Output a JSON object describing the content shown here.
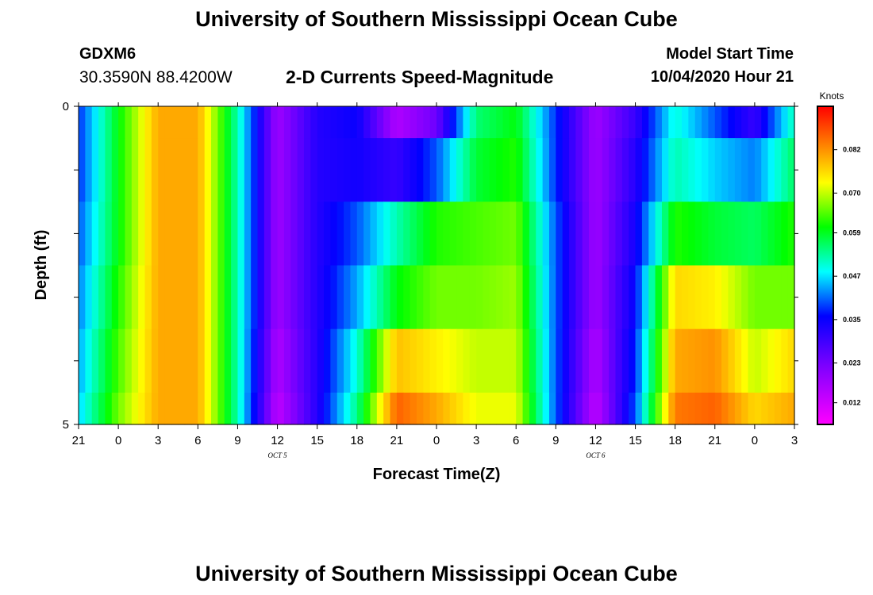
{
  "header": {
    "title": "University of Southern Mississippi Ocean Cube",
    "station_id": "GDXM6",
    "station_coords": "30.3590N 88.4200W",
    "plot_title": "2-D Currents Speed-Magnitude",
    "model_start_label": "Model Start Time",
    "model_start_value": "10/04/2020 Hour 21"
  },
  "footer": {
    "title": "University of Southern Mississippi Ocean Cube"
  },
  "chart_data": {
    "type": "heatmap",
    "title": "2-D Currents Speed-Magnitude",
    "xlabel": "Forecast Time(Z)",
    "ylabel": "Depth (ft)",
    "y_ticks": [
      "0",
      "5"
    ],
    "ylim": [
      0,
      5
    ],
    "x_ticks": [
      "21",
      "0",
      "3",
      "6",
      "9",
      "12",
      "15",
      "18",
      "21",
      "0",
      "3",
      "6",
      "9",
      "12",
      "15",
      "18",
      "21",
      "0",
      "3"
    ],
    "date_labels": [
      {
        "text": "OCT 5",
        "tick_index": 5
      },
      {
        "text": "OCT 6",
        "tick_index": 13
      }
    ],
    "colorbar": {
      "label": "Knots",
      "tick_values": [
        "0.082",
        "0.070",
        "0.059",
        "0.047",
        "0.035",
        "0.023",
        "0.012"
      ],
      "range": [
        0.006,
        0.094
      ]
    },
    "time_hours": [
      0,
      3,
      6,
      9,
      12,
      15,
      18,
      21,
      24,
      27,
      30,
      33,
      36,
      39,
      42,
      45,
      48,
      51,
      54
    ],
    "depth_rows": [
      "0.0-0.5",
      "0.5-1.5",
      "1.5-2.5",
      "2.5-3.5",
      "3.5-4.5",
      "4.5-5.0"
    ],
    "values": [
      [
        0.038,
        0.06,
        0.08,
        0.08,
        0.052,
        0.018,
        0.032,
        0.035,
        0.016,
        0.024,
        0.055,
        0.06,
        0.038,
        0.018,
        0.03,
        0.05,
        0.04,
        0.03,
        0.052
      ],
      [
        0.038,
        0.06,
        0.08,
        0.08,
        0.052,
        0.018,
        0.032,
        0.034,
        0.03,
        0.04,
        0.058,
        0.062,
        0.038,
        0.018,
        0.032,
        0.052,
        0.046,
        0.042,
        0.056
      ],
      [
        0.04,
        0.06,
        0.08,
        0.08,
        0.052,
        0.018,
        0.032,
        0.04,
        0.052,
        0.062,
        0.064,
        0.066,
        0.04,
        0.018,
        0.034,
        0.062,
        0.058,
        0.056,
        0.062
      ],
      [
        0.042,
        0.062,
        0.08,
        0.08,
        0.052,
        0.018,
        0.032,
        0.044,
        0.06,
        0.066,
        0.066,
        0.068,
        0.04,
        0.018,
        0.036,
        0.076,
        0.074,
        0.066,
        0.066
      ],
      [
        0.044,
        0.064,
        0.08,
        0.08,
        0.052,
        0.016,
        0.032,
        0.05,
        0.078,
        0.074,
        0.07,
        0.07,
        0.04,
        0.016,
        0.038,
        0.08,
        0.082,
        0.07,
        0.076
      ],
      [
        0.046,
        0.066,
        0.08,
        0.08,
        0.052,
        0.014,
        0.032,
        0.054,
        0.086,
        0.08,
        0.072,
        0.072,
        0.04,
        0.014,
        0.04,
        0.084,
        0.086,
        0.076,
        0.08
      ]
    ]
  }
}
